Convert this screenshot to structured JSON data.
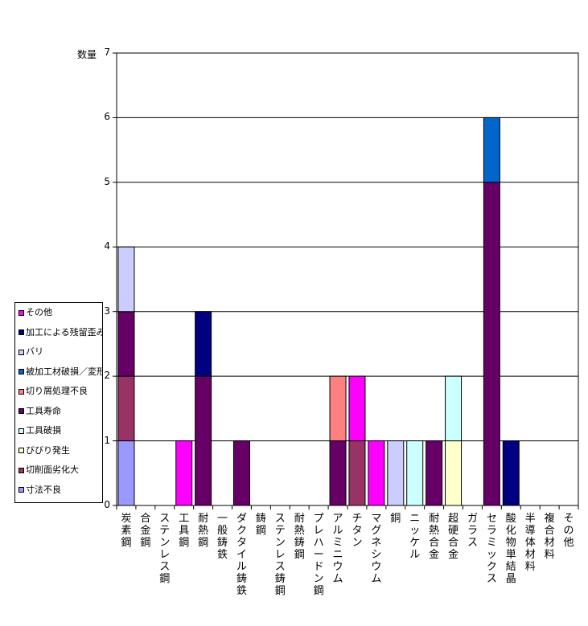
{
  "chart_data": {
    "type": "bar",
    "stacked": true,
    "ylabel": "数量",
    "ylim": [
      0,
      7
    ],
    "yticks": [
      "0",
      "1",
      "2",
      "3",
      "4",
      "5",
      "6",
      "7"
    ],
    "grid": true,
    "legend_position": "left",
    "categories": [
      "炭素鋼",
      "合金鋼",
      "ステンレス鋼",
      "工具鋼",
      "耐熱鋼",
      "一般鋳鉄",
      "ダクタイル鋳鉄",
      "鋳鋼",
      "ステンレス鋳鋼",
      "耐熱鋳鋼",
      "プレハードン鋼",
      "アルミニウム",
      "チタン",
      "マグネシウム",
      "銅",
      "ニッケル",
      "耐熱合金",
      "超硬合金",
      "ガラス",
      "セラミックス",
      "酸化物単結晶",
      "半導体材料",
      "複合材料",
      "その他"
    ],
    "series": [
      {
        "name": "寸法不良",
        "color": "#9999FF",
        "values": [
          1,
          0,
          0,
          0,
          0,
          0,
          0,
          0,
          0,
          0,
          0,
          0,
          0,
          0,
          0,
          0,
          0,
          0,
          0,
          0,
          0,
          0,
          0,
          0
        ]
      },
      {
        "name": "切削面劣化大",
        "color": "#993366",
        "values": [
          1,
          0,
          0,
          0,
          0,
          0,
          0,
          0,
          0,
          0,
          0,
          0,
          1,
          0,
          0,
          0,
          0,
          0,
          0,
          0,
          0,
          0,
          0,
          0
        ]
      },
      {
        "name": "びびり発生",
        "color": "#FFFFCC",
        "values": [
          0,
          0,
          0,
          0,
          0,
          0,
          0,
          0,
          0,
          0,
          0,
          0,
          0,
          0,
          0,
          0,
          0,
          1,
          0,
          0,
          0,
          0,
          0,
          0
        ]
      },
      {
        "name": "工具破損",
        "color": "#CCFFFF",
        "values": [
          0,
          0,
          0,
          0,
          0,
          0,
          0,
          0,
          0,
          0,
          0,
          0,
          0,
          0,
          0,
          1,
          0,
          1,
          0,
          0,
          0,
          0,
          0,
          0
        ]
      },
      {
        "name": "工具寿命",
        "color": "#660066",
        "values": [
          1,
          0,
          0,
          0,
          2,
          0,
          1,
          0,
          0,
          0,
          0,
          1,
          0,
          0,
          0,
          0,
          1,
          0,
          0,
          5,
          0,
          0,
          0,
          0
        ]
      },
      {
        "name": "切り屑処理不良",
        "color": "#FF8080",
        "values": [
          0,
          0,
          0,
          0,
          0,
          0,
          0,
          0,
          0,
          0,
          0,
          1,
          0,
          0,
          0,
          0,
          0,
          0,
          0,
          0,
          0,
          0,
          0,
          0
        ]
      },
      {
        "name": "被加工材破損／変形",
        "color": "#0066CC",
        "values": [
          0,
          0,
          0,
          0,
          0,
          0,
          0,
          0,
          0,
          0,
          0,
          0,
          0,
          0,
          0,
          0,
          0,
          0,
          0,
          1,
          0,
          0,
          0,
          0
        ]
      },
      {
        "name": "バリ",
        "color": "#CCCCFF",
        "values": [
          1,
          0,
          0,
          0,
          0,
          0,
          0,
          0,
          0,
          0,
          0,
          0,
          0,
          0,
          1,
          0,
          0,
          0,
          0,
          0,
          0,
          0,
          0,
          0
        ]
      },
      {
        "name": "加工による残留歪み",
        "color": "#000080",
        "values": [
          0,
          0,
          0,
          0,
          1,
          0,
          0,
          0,
          0,
          0,
          0,
          0,
          0,
          0,
          0,
          0,
          0,
          0,
          0,
          0,
          1,
          0,
          0,
          0
        ]
      },
      {
        "name": "その他",
        "color": "#FF00FF",
        "values": [
          0,
          0,
          0,
          1,
          0,
          0,
          0,
          0,
          0,
          0,
          0,
          0,
          1,
          1,
          0,
          0,
          0,
          0,
          0,
          0,
          0,
          0,
          0,
          0
        ]
      }
    ]
  }
}
